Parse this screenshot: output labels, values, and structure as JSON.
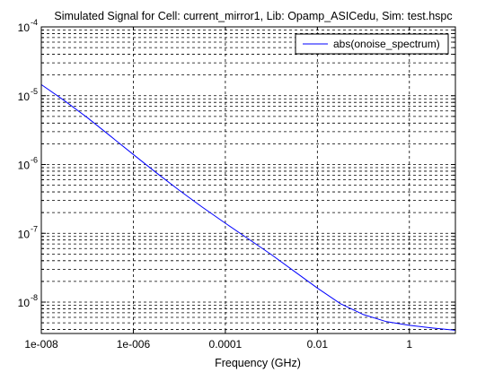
{
  "chart_data": {
    "type": "line",
    "title": "Simulated Signal for Cell: current_mirror1, Lib: Opamp_ASICedu, Sim: test.hspc",
    "xlabel": "Frequency (GHz)",
    "ylabel": "",
    "xscale": "log",
    "yscale": "log",
    "xlim": [
      1e-08,
      10
    ],
    "ylim": [
      3.5e-09,
      0.0001
    ],
    "x_ticks": [
      1e-08,
      1e-06,
      0.0001,
      0.01,
      1
    ],
    "x_tick_labels": [
      "1e-008",
      "1e-006",
      "0.0001",
      "0.01",
      "1"
    ],
    "y_tick_decades": [
      -8,
      -7,
      -6,
      -5,
      -4
    ],
    "y_tick_base": "10",
    "grid": true,
    "grid_style": "dashed, major and minor",
    "legend_position": "top-right",
    "series": [
      {
        "name": "abs(onoise_spectrum)",
        "color": "#0000ff",
        "x": [
          1e-08,
          3.16e-08,
          1e-07,
          3.16e-07,
          1e-06,
          3.16e-06,
          1e-05,
          3.16e-05,
          0.0001,
          0.000316,
          0.001,
          0.00316,
          0.01,
          0.0316,
          0.1,
          0.316,
          1,
          3.16,
          10
        ],
        "y": [
          1.45e-05,
          8.5e-06,
          4.8e-06,
          2.6e-06,
          1.4e-06,
          7.6e-07,
          4.2e-07,
          2.4e-07,
          1.4e-07,
          8.3e-08,
          4.9e-08,
          2.8e-08,
          1.6e-08,
          9.5e-09,
          6.6e-09,
          5.2e-09,
          4.6e-09,
          4.2e-09,
          3.9e-09
        ]
      }
    ]
  }
}
